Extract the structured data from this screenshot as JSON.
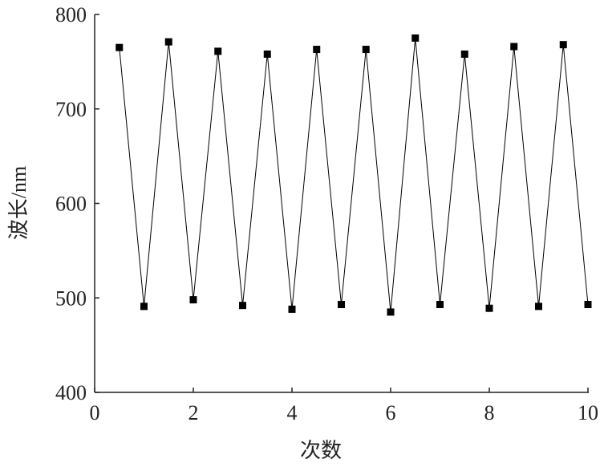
{
  "chart_data": {
    "type": "line",
    "x_label": "次数",
    "y_label": "波长/nm",
    "x": [
      0.5,
      1,
      1.5,
      2,
      2.5,
      3,
      3.5,
      4,
      4.5,
      5,
      5.5,
      6,
      6.5,
      7,
      7.5,
      8,
      8.5,
      9,
      9.5,
      10
    ],
    "values": [
      765,
      491,
      771,
      498,
      761,
      492,
      758,
      488,
      763,
      493,
      763,
      485,
      775,
      493,
      758,
      489,
      766,
      491,
      768,
      493
    ],
    "color": "#000000",
    "xlim": [
      0,
      10
    ],
    "xticks": [
      0,
      2,
      4,
      6,
      8,
      10
    ],
    "ylim": [
      400,
      800
    ],
    "yticks": [
      400,
      500,
      600,
      700,
      800
    ]
  }
}
